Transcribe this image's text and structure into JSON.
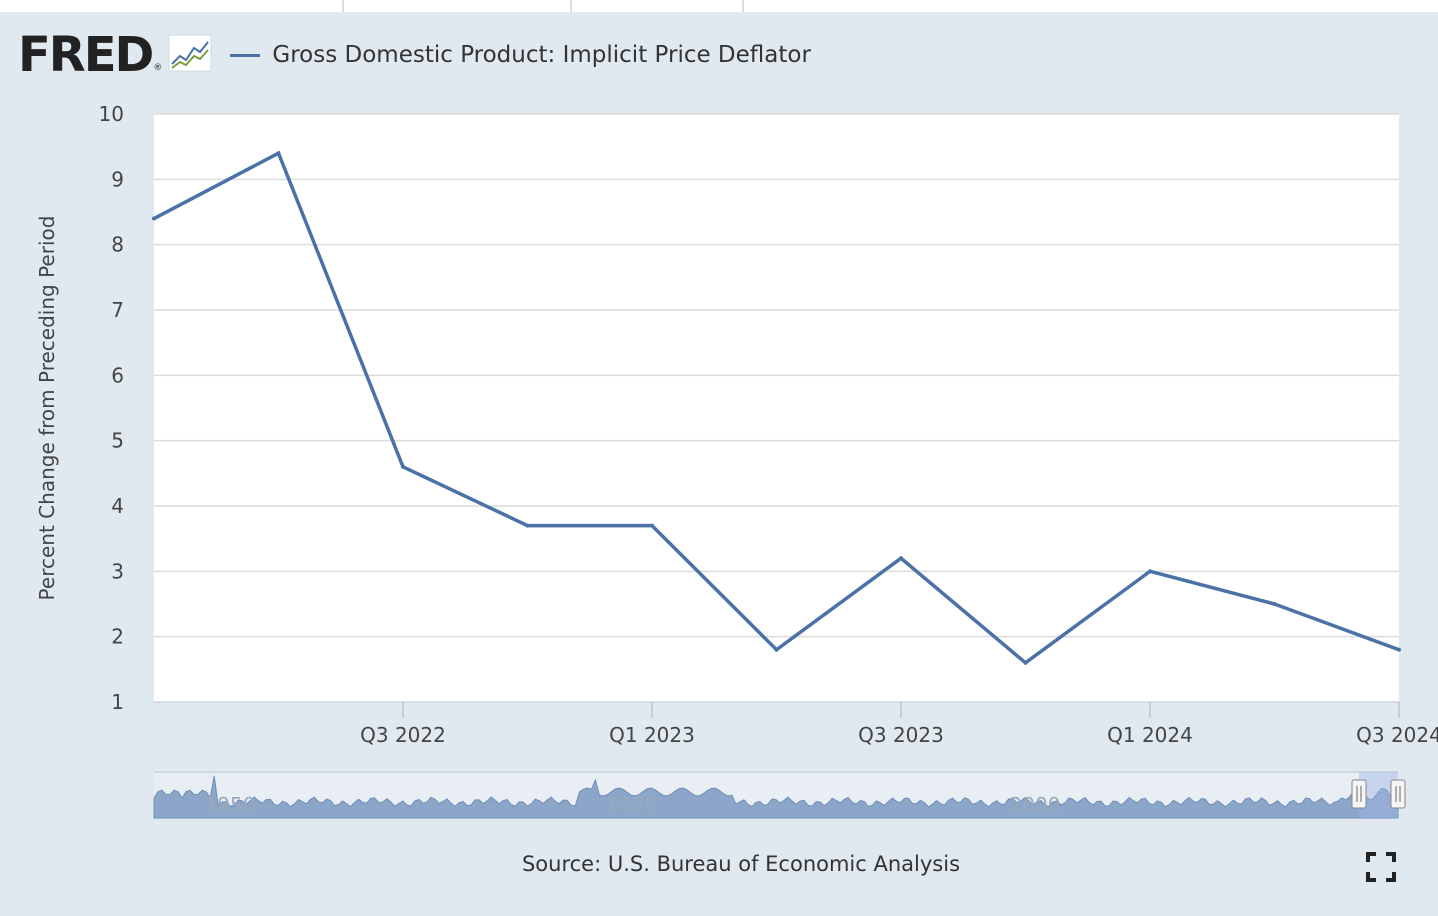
{
  "header": {
    "logo_text": "FRED",
    "logo_registered": "®",
    "legend_label": "Gross Domestic Product: Implicit Price Deflator"
  },
  "source_text": "Source: U.S. Bureau of Economic Analysis",
  "colors": {
    "background": "#e1e9f0",
    "series": "#4a72a6",
    "navigator_fill": "#8ca6c9",
    "gridline": "#dcdcdc"
  },
  "icons": {
    "logo_chart": "fred-chart-icon",
    "fullscreen": "fullscreen-icon"
  },
  "chart_data": {
    "type": "line",
    "title": "",
    "xlabel": "",
    "ylabel": "Percent Change from Preceding Period",
    "ylim": [
      1,
      10
    ],
    "yticks": [
      "1",
      "2",
      "3",
      "4",
      "5",
      "6",
      "7",
      "8",
      "9",
      "10"
    ],
    "xticks": [
      "Q3 2022",
      "Q1 2023",
      "Q3 2023",
      "Q1 2024",
      "Q3 2024"
    ],
    "grid": true,
    "legend_position": "top-left",
    "series": [
      {
        "name": "Gross Domestic Product: Implicit Price Deflator",
        "x": [
          "Q1 2022",
          "Q2 2022",
          "Q3 2022",
          "Q4 2022",
          "Q1 2023",
          "Q2 2023",
          "Q3 2023",
          "Q4 2023",
          "Q1 2024",
          "Q2 2024",
          "Q3 2024"
        ],
        "values": [
          8.4,
          9.4,
          4.6,
          3.7,
          3.7,
          1.8,
          3.2,
          1.6,
          3.0,
          2.5,
          1.8
        ]
      }
    ],
    "navigator": {
      "labels": [
        "1950",
        "1975",
        "2000"
      ],
      "selected_range": [
        "Q1 2022",
        "Q3 2024"
      ]
    }
  }
}
